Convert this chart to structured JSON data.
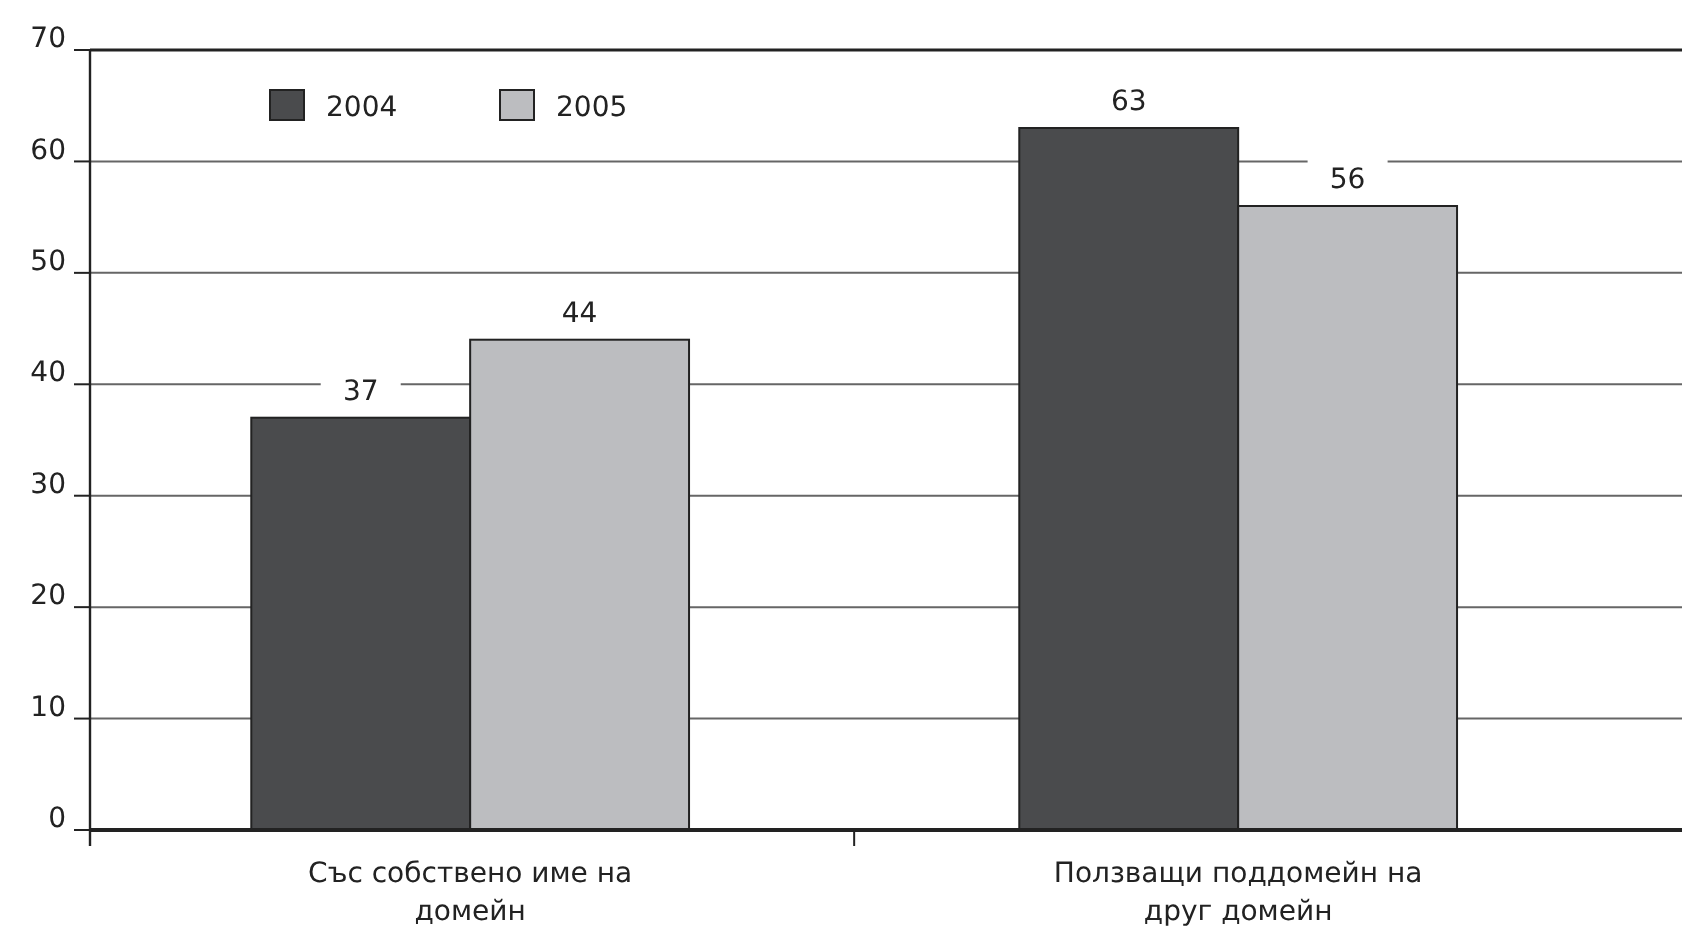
{
  "chart_data": {
    "type": "bar",
    "categories": [
      "Със собствено име на домейн",
      "Ползващи поддомейн на друг домейн"
    ],
    "series": [
      {
        "name": "2004",
        "color": "#4a4b4d",
        "values": [
          37,
          63
        ]
      },
      {
        "name": "2005",
        "color": "#bcbdc0",
        "values": [
          44,
          56
        ]
      }
    ],
    "ylim": [
      0,
      70
    ],
    "yticks": [
      0,
      10,
      20,
      30,
      40,
      50,
      60,
      70
    ],
    "grid": "y",
    "legend": "top left",
    "data_labels": true
  }
}
